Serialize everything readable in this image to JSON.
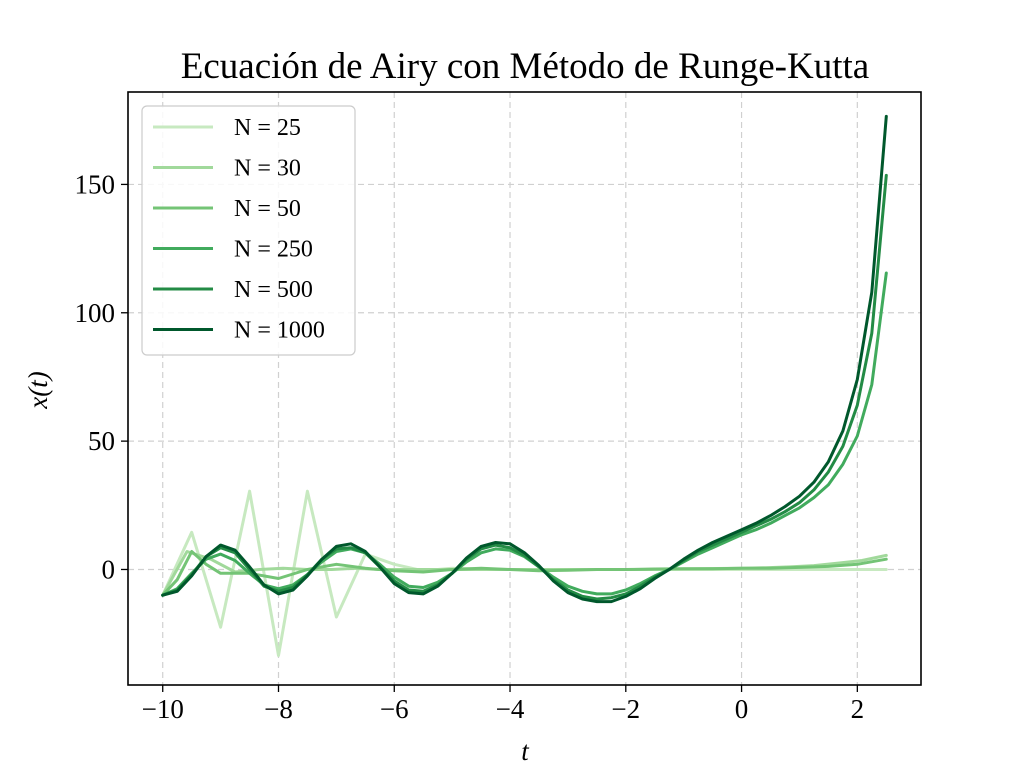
{
  "chart_data": {
    "type": "line",
    "title": "Ecuación de Airy con Método de Runge-Kutta",
    "xlabel": "t",
    "ylabel": "x(t)",
    "xlim": [
      -10.6,
      3.1
    ],
    "ylim": [
      -45,
      186
    ],
    "xticks": [
      -10,
      -8,
      -6,
      -4,
      -2,
      0,
      2
    ],
    "xtick_labels": [
      "−10",
      "−8",
      "−6",
      "−4",
      "−2",
      "0",
      "2"
    ],
    "yticks": [
      0,
      50,
      100,
      150
    ],
    "ytick_labels": [
      "0",
      "50",
      "100",
      "150"
    ],
    "grid": true,
    "legend_position": "upper-left",
    "series": [
      {
        "name": "N = 25",
        "color": "#c7e9c0",
        "x": [
          -10,
          -9.5,
          -9,
          -8.5,
          -8,
          -7.5,
          -7,
          -6.5,
          -6,
          -5.5,
          -5,
          -4.5,
          -4,
          -3.5,
          -3,
          -2.5,
          -2,
          -1.5,
          -1,
          -0.5,
          0,
          0.5,
          1,
          1.5,
          2,
          2.5
        ],
        "y": [
          -10,
          14.5,
          -22.5,
          30.5,
          -33.5,
          30.5,
          -18.5,
          6,
          2,
          -0.5,
          0.5,
          0.2,
          0,
          0,
          0,
          0,
          0,
          0,
          0,
          0,
          0,
          0,
          0,
          0,
          0,
          0
        ]
      },
      {
        "name": "N = 30",
        "color": "#a1d99b",
        "x": [
          -10,
          -9.58,
          -9.17,
          -8.75,
          -8.33,
          -7.92,
          -7.5,
          -7.08,
          -6.67,
          -6.25,
          -5.83,
          -5.42,
          -5,
          -4.58,
          -4.17,
          -3.75,
          -3.33,
          -2.92,
          -2.5,
          -2.08,
          -1.67,
          -1.25,
          -0.83,
          -0.42,
          0,
          0.42,
          0.83,
          1.25,
          1.67,
          2.08,
          2.5
        ],
        "y": [
          -10,
          7,
          4,
          -1,
          0,
          0.5,
          0,
          0,
          0.5,
          0,
          0,
          0,
          0,
          0,
          0,
          0,
          0,
          0,
          0,
          0,
          0,
          0.2,
          0.3,
          0.4,
          0.5,
          0.7,
          1,
          1.5,
          2.5,
          3.5,
          5.5
        ]
      },
      {
        "name": "N = 50",
        "color": "#74c476",
        "x": [
          -10,
          -9.75,
          -9.5,
          -9.25,
          -9,
          -8.5,
          -8,
          -7.5,
          -7,
          -6.5,
          -6,
          -5.5,
          -5,
          -4.5,
          -4,
          -3.5,
          -3,
          -2.5,
          -2,
          -1.5,
          -1,
          -0.5,
          0,
          0.5,
          1,
          1.5,
          2,
          2.5
        ],
        "y": [
          -10,
          -4,
          7,
          2,
          -1.5,
          -1.5,
          -3.5,
          0,
          2,
          0.5,
          -0.5,
          -1,
          0,
          0.5,
          0,
          -0.5,
          -0.3,
          0,
          0,
          0.2,
          0.3,
          0.3,
          0.5,
          0.5,
          0.8,
          1.2,
          2,
          4
        ]
      },
      {
        "name": "N = 250",
        "color": "#41ab5d",
        "x": [
          -10,
          -9.75,
          -9.5,
          -9.25,
          -9,
          -8.75,
          -8.5,
          -8.25,
          -8,
          -7.75,
          -7.5,
          -7.25,
          -7,
          -6.75,
          -6.5,
          -6.25,
          -6,
          -5.75,
          -5.5,
          -5.25,
          -5,
          -4.75,
          -4.5,
          -4.25,
          -4,
          -3.75,
          -3.5,
          -3.25,
          -3,
          -2.75,
          -2.5,
          -2.25,
          -2,
          -1.75,
          -1.5,
          -1.25,
          -1,
          -0.75,
          -0.5,
          -0.25,
          0,
          0.25,
          0.5,
          0.75,
          1,
          1.25,
          1.5,
          1.75,
          2,
          2.25,
          2.5
        ],
        "y": [
          -10,
          -7.5,
          -1.5,
          4,
          6,
          3.5,
          -1.5,
          -6,
          -7.5,
          -6,
          -2,
          3,
          7,
          8,
          6.5,
          2,
          -3,
          -6.5,
          -7,
          -5,
          -1.5,
          3,
          6.5,
          8,
          7.5,
          5,
          1,
          -3,
          -6.5,
          -8.5,
          -9.5,
          -9.5,
          -8,
          -5.5,
          -2.5,
          0,
          3,
          6,
          8.5,
          11,
          13.5,
          15.5,
          18,
          21,
          24,
          28,
          33,
          41,
          52,
          72,
          115.5
        ]
      },
      {
        "name": "N = 500",
        "color": "#238b45",
        "x": [
          -10,
          -9.75,
          -9.5,
          -9.25,
          -9,
          -8.75,
          -8.5,
          -8.25,
          -8,
          -7.75,
          -7.5,
          -7.25,
          -7,
          -6.75,
          -6.5,
          -6.25,
          -6,
          -5.75,
          -5.5,
          -5.25,
          -5,
          -4.75,
          -4.5,
          -4.25,
          -4,
          -3.75,
          -3.5,
          -3.25,
          -3,
          -2.75,
          -2.5,
          -2.25,
          -2,
          -1.75,
          -1.5,
          -1.25,
          -1,
          -0.75,
          -0.5,
          -0.25,
          0,
          0.25,
          0.5,
          0.75,
          1,
          1.25,
          1.5,
          1.75,
          2,
          2.25,
          2.5
        ],
        "y": [
          -10,
          -8,
          -2,
          5,
          8.5,
          6.5,
          0,
          -6.5,
          -8.5,
          -7,
          -2,
          4,
          8,
          8.5,
          6.5,
          1,
          -4.5,
          -8,
          -8.5,
          -6,
          -1.5,
          4,
          8,
          9.5,
          8.5,
          5.5,
          1,
          -4,
          -8,
          -10.5,
          -11.5,
          -11,
          -9.5,
          -6.5,
          -3,
          0,
          3.5,
          7,
          9.5,
          12,
          14.5,
          17,
          19.5,
          22.5,
          26,
          31,
          38,
          48,
          64,
          92,
          153.5
        ]
      },
      {
        "name": "N = 1000",
        "color": "#00582c",
        "x": [
          -10,
          -9.75,
          -9.5,
          -9.25,
          -9,
          -8.75,
          -8.5,
          -8.25,
          -8,
          -7.75,
          -7.5,
          -7.25,
          -7,
          -6.75,
          -6.5,
          -6.25,
          -6,
          -5.75,
          -5.5,
          -5.25,
          -5,
          -4.75,
          -4.5,
          -4.25,
          -4,
          -3.75,
          -3.5,
          -3.25,
          -3,
          -2.75,
          -2.5,
          -2.25,
          -2,
          -1.75,
          -1.5,
          -1.25,
          -1,
          -0.75,
          -0.5,
          -0.25,
          0,
          0.25,
          0.5,
          0.75,
          1,
          1.25,
          1.5,
          1.75,
          2,
          2.25,
          2.5
        ],
        "y": [
          -10,
          -8.5,
          -2.5,
          5,
          9.5,
          7.5,
          1,
          -6,
          -9.5,
          -8,
          -2.5,
          4,
          9,
          10,
          7,
          1,
          -5.5,
          -9,
          -9.5,
          -6.5,
          -1.5,
          4.5,
          9,
          10.5,
          10,
          6.5,
          1.5,
          -4.5,
          -9,
          -11.5,
          -12.5,
          -12.5,
          -10.5,
          -7.5,
          -3.5,
          0,
          4,
          7.5,
          10.5,
          13,
          15.5,
          18,
          21,
          24.5,
          28.5,
          34,
          42,
          54,
          74,
          108,
          176.5
        ]
      }
    ]
  }
}
